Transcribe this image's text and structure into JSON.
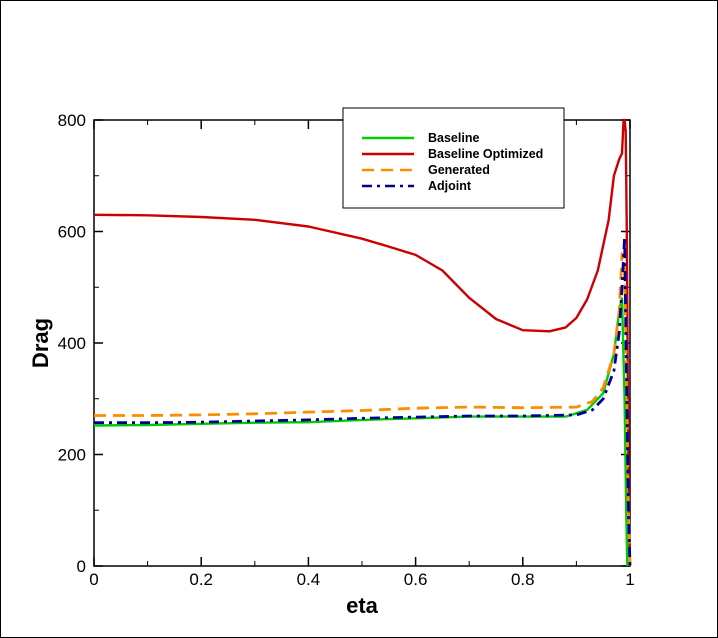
{
  "chart_data": {
    "type": "line",
    "title": "",
    "xlabel": "eta",
    "ylabel": "Drag",
    "xlim": [
      0,
      1
    ],
    "ylim": [
      0,
      800
    ],
    "grid": false,
    "legend_position": "top-right",
    "x_ticks": [
      "0",
      "0.2",
      "0.4",
      "0.6",
      "0.8",
      "1"
    ],
    "y_ticks": [
      "0",
      "200",
      "400",
      "600",
      "800"
    ],
    "series": [
      {
        "name": "Baseline",
        "color": "#00cc00",
        "dash": "solid",
        "x": [
          0,
          0.1,
          0.2,
          0.3,
          0.4,
          0.5,
          0.6,
          0.7,
          0.8,
          0.88,
          0.92,
          0.95,
          0.97,
          0.98,
          0.985,
          0.99,
          0.993,
          0.995
        ],
        "y": [
          252,
          253,
          255,
          257,
          258,
          262,
          265,
          268,
          268,
          268,
          280,
          310,
          380,
          460,
          480,
          300,
          100,
          0
        ]
      },
      {
        "name": "Baseline Optimized",
        "color": "#cc0000",
        "dash": "solid",
        "x": [
          0,
          0.1,
          0.2,
          0.3,
          0.4,
          0.5,
          0.55,
          0.6,
          0.65,
          0.7,
          0.75,
          0.8,
          0.85,
          0.88,
          0.9,
          0.92,
          0.94,
          0.96,
          0.97,
          0.98,
          0.985,
          0.988,
          0.99,
          0.992,
          0.994,
          0.996,
          0.998,
          1.0
        ],
        "y": [
          630,
          629,
          626,
          621,
          609,
          587,
          573,
          558,
          530,
          481,
          443,
          423,
          421,
          428,
          445,
          478,
          530,
          620,
          700,
          730,
          740,
          800,
          800,
          780,
          600,
          300,
          80,
          0
        ]
      },
      {
        "name": "Generated",
        "color": "#ff8c00",
        "dash": "dashed",
        "x": [
          0,
          0.1,
          0.2,
          0.3,
          0.4,
          0.5,
          0.6,
          0.7,
          0.8,
          0.9,
          0.93,
          0.95,
          0.97,
          0.98,
          0.985,
          0.99,
          0.994,
          0.997,
          1.0
        ],
        "y": [
          270,
          270,
          271,
          273,
          276,
          279,
          283,
          285,
          284,
          285,
          295,
          320,
          380,
          460,
          560,
          540,
          300,
          100,
          0
        ]
      },
      {
        "name": "Adjoint",
        "color": "#000099",
        "dash": "dashdot",
        "x": [
          0,
          0.1,
          0.2,
          0.3,
          0.4,
          0.5,
          0.6,
          0.7,
          0.8,
          0.9,
          0.93,
          0.95,
          0.97,
          0.98,
          0.985,
          0.99,
          0.994,
          0.997,
          1.0
        ],
        "y": [
          257,
          257,
          258,
          260,
          262,
          265,
          267,
          269,
          269,
          271,
          280,
          300,
          350,
          420,
          500,
          590,
          300,
          100,
          0
        ]
      }
    ]
  }
}
